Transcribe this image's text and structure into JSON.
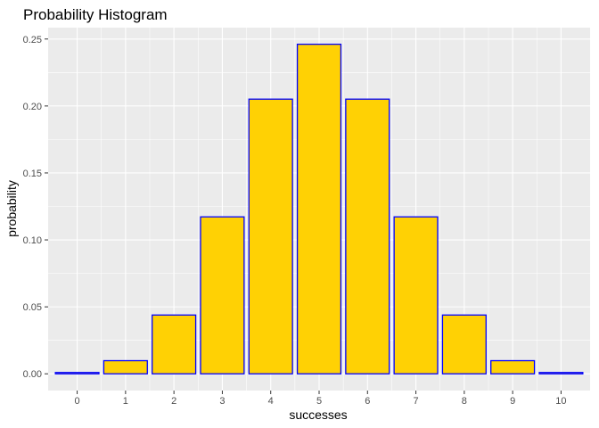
{
  "chart_data": {
    "type": "bar",
    "title": "Probability Histogram",
    "xlabel": "successes",
    "ylabel": "probability",
    "categories": [
      "0",
      "1",
      "2",
      "3",
      "4",
      "5",
      "6",
      "7",
      "8",
      "9",
      "10"
    ],
    "values": [
      0.00098,
      0.0098,
      0.0439,
      0.1172,
      0.2051,
      0.2461,
      0.2051,
      0.1172,
      0.0439,
      0.0098,
      0.00098
    ],
    "ylim": [
      -0.0125,
      0.2585
    ],
    "yticks": [
      0.0,
      0.05,
      0.1,
      0.15,
      0.2,
      0.25
    ],
    "ytick_labels": [
      "0.00",
      "0.05",
      "0.10",
      "0.15",
      "0.20",
      "0.25"
    ],
    "grid": true,
    "legend": "none",
    "colors": {
      "bar_fill": "#FFD104",
      "bar_outline": "#0000FF",
      "panel_background": "#EBEBEB",
      "grid_line": "#FFFFFF",
      "tick_label": "#4D4D4D"
    }
  }
}
